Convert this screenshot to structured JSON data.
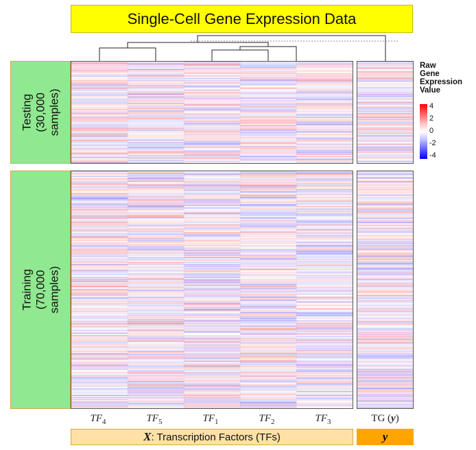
{
  "title": "Single-Cell Gene Expression Data",
  "groups": {
    "testing": [
      "Testing",
      "(30,000",
      "samples)"
    ],
    "training": [
      "Training",
      "(70,000",
      "samples)"
    ]
  },
  "columns": [
    {
      "base": "TF",
      "sub": "4"
    },
    {
      "base": "TF",
      "sub": "5"
    },
    {
      "base": "TF",
      "sub": "1"
    },
    {
      "base": "TF",
      "sub": "2"
    },
    {
      "base": "TF",
      "sub": "3"
    }
  ],
  "target_column": {
    "text": "TG (",
    "var": "y",
    "close": ")"
  },
  "x_box": {
    "var": "X",
    "text": ": Transcription Factors (TFs)"
  },
  "y_box": "y",
  "legend": {
    "title": [
      "Raw",
      "Gene",
      "Expression",
      "Value"
    ],
    "ticks": [
      "4",
      "2",
      "0",
      "-2",
      "-4"
    ],
    "colors": {
      "high": "#ff0000",
      "mid": "#ffffff",
      "low": "#0000ff"
    }
  },
  "colors": {
    "title_bg": "#ffff00",
    "side_bg": "#90e890",
    "x_bg": "#ffe1a6",
    "y_bg": "#ffa500"
  }
}
